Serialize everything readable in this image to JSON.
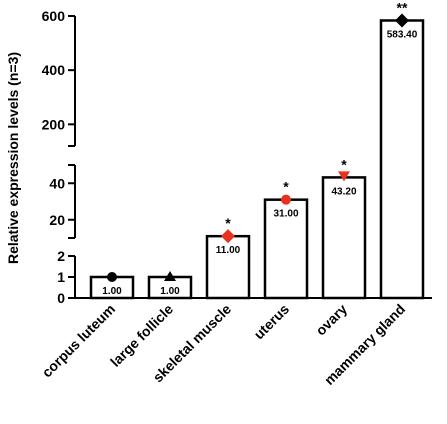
{
  "chart_data": {
    "type": "bar",
    "ylabel": "Relative expression levels (n=3)",
    "categories": [
      "corpus luteum",
      "large follicle",
      "skeletal muscle",
      "uterus",
      "ovary",
      "mammary gland"
    ],
    "values": [
      1.0,
      1.0,
      11.0,
      31.0,
      43.2,
      583.4
    ],
    "data_labels": [
      "1.00",
      "1.00",
      "11.00",
      "31.00",
      "43.20",
      "583.40"
    ],
    "significance": [
      "",
      "",
      "*",
      "*",
      "*",
      "**"
    ],
    "markers": [
      {
        "shape": "circle",
        "color": "#000000"
      },
      {
        "shape": "triangle-up",
        "color": "#000000"
      },
      {
        "shape": "diamond",
        "color": "#e8321e"
      },
      {
        "shape": "circle",
        "color": "#e8321e"
      },
      {
        "shape": "triangle-down",
        "color": "#e8321e"
      },
      {
        "shape": "diamond",
        "color": "#000000"
      }
    ],
    "y_axis_segments": [
      {
        "range": [
          0,
          2
        ],
        "ticks": [
          "0",
          "1",
          "2"
        ]
      },
      {
        "range": [
          10,
          50
        ],
        "ticks": [
          "20",
          "40"
        ]
      },
      {
        "range": [
          120,
          600
        ],
        "ticks": [
          "200",
          "400",
          "600"
        ]
      }
    ],
    "bar_color": "#ffffff",
    "bar_edge_color": "#000000",
    "grid": false,
    "legend": "none"
  }
}
